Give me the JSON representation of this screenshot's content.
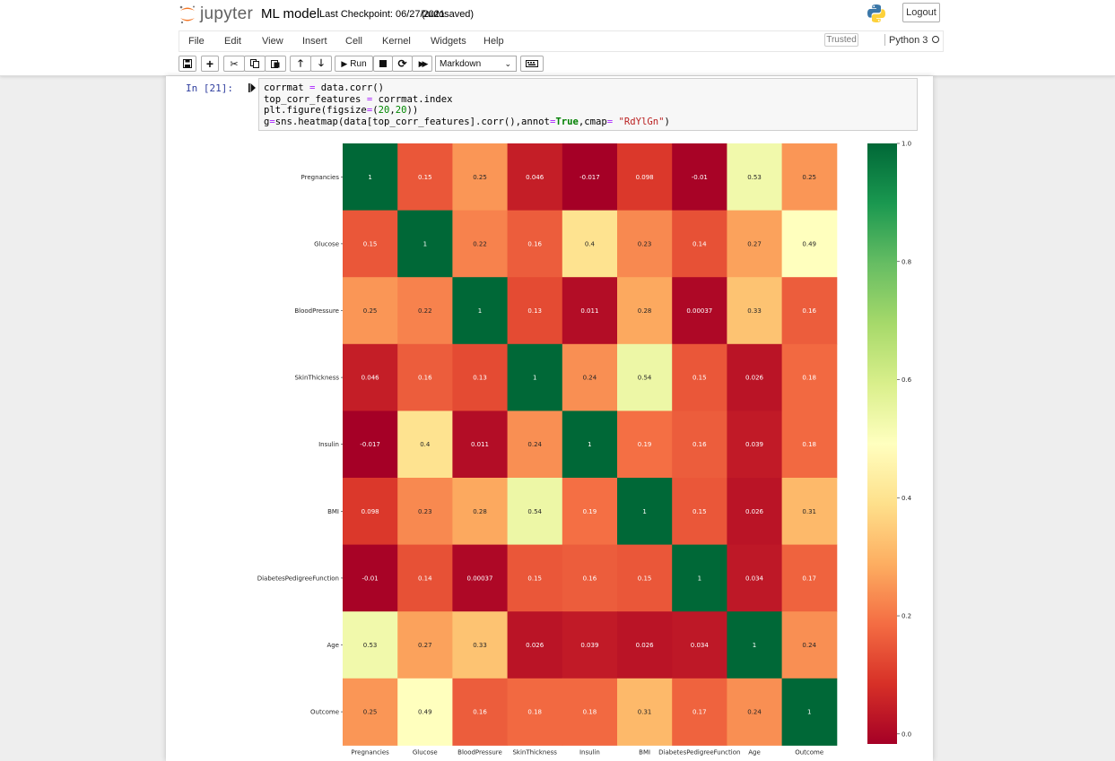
{
  "header": {
    "logo_text": "jupyter",
    "notebook_name": "ML model",
    "checkpoint": "Last Checkpoint: 06/27/2021",
    "autosave": "(autosaved)",
    "logout_label": "Logout",
    "trusted_label": "Trusted",
    "kernel_name": "Python 3"
  },
  "menu": {
    "items": [
      "File",
      "Edit",
      "View",
      "Insert",
      "Cell",
      "Kernel",
      "Widgets",
      "Help"
    ]
  },
  "toolbar": {
    "run_label": "Run",
    "cell_type": "Markdown",
    "icons": [
      "save-icon",
      "plus-icon",
      "cut-icon",
      "copy-icon",
      "paste-icon",
      "arrow-up-icon",
      "arrow-down-icon",
      "run-icon",
      "stop-icon",
      "restart-icon",
      "fast-forward-icon",
      "keyboard-icon"
    ]
  },
  "cell": {
    "prompt": "In [21]:",
    "code": [
      "corrmat = data.corr()",
      "top_corr_features = corrmat.index",
      "plt.figure(figsize=(20,20))",
      "g=sns.heatmap(data[top_corr_features].corr(),annot=True,cmap= \"RdYlGn\")"
    ]
  },
  "colors": {
    "prompt": "#303f9f",
    "colormap": [
      "#a50026",
      "#d73027",
      "#f46d43",
      "#fdae61",
      "#fee08b",
      "#ffffbf",
      "#d9ef8b",
      "#a6d96a",
      "#66bd63",
      "#1a9850",
      "#006837"
    ]
  },
  "chart_data": {
    "type": "heatmap",
    "colormap": "RdYlGn",
    "labels": [
      "Pregnancies",
      "Glucose",
      "BloodPressure",
      "SkinThickness",
      "Insulin",
      "BMI",
      "DiabetesPedigreeFunction",
      "Age",
      "Outcome"
    ],
    "values": [
      [
        1,
        0.15,
        0.25,
        0.046,
        -0.017,
        0.098,
        -0.01,
        0.53,
        0.25
      ],
      [
        0.15,
        1,
        0.22,
        0.16,
        0.4,
        0.23,
        0.14,
        0.27,
        0.49
      ],
      [
        0.25,
        0.22,
        1,
        0.13,
        0.011,
        0.28,
        0.00037,
        0.33,
        0.16
      ],
      [
        0.046,
        0.16,
        0.13,
        1,
        0.24,
        0.54,
        0.15,
        0.026,
        0.18
      ],
      [
        -0.017,
        0.4,
        0.011,
        0.24,
        1,
        0.19,
        0.16,
        0.039,
        0.18
      ],
      [
        0.098,
        0.23,
        0.28,
        0.54,
        0.19,
        1,
        0.15,
        0.026,
        0.31
      ],
      [
        -0.01,
        0.14,
        0.00037,
        0.15,
        0.16,
        0.15,
        1,
        0.034,
        0.17
      ],
      [
        0.53,
        0.27,
        0.33,
        0.026,
        0.039,
        0.026,
        0.034,
        1,
        0.24
      ],
      [
        0.25,
        0.49,
        0.16,
        0.18,
        0.18,
        0.31,
        0.17,
        0.24,
        1
      ]
    ],
    "annotations": [
      [
        "1",
        "0.15",
        "0.25",
        "0.046",
        "-0.017",
        "0.098",
        "-0.01",
        "0.53",
        "0.25"
      ],
      [
        "0.15",
        "1",
        "0.22",
        "0.16",
        "0.4",
        "0.23",
        "0.14",
        "0.27",
        "0.49"
      ],
      [
        "0.25",
        "0.22",
        "1",
        "0.13",
        "0.011",
        "0.28",
        "0.00037",
        "0.33",
        "0.16"
      ],
      [
        "0.046",
        "0.16",
        "0.13",
        "1",
        "0.24",
        "0.54",
        "0.15",
        "0.026",
        "0.18"
      ],
      [
        "-0.017",
        "0.4",
        "0.011",
        "0.24",
        "1",
        "0.19",
        "0.16",
        "0.039",
        "0.18"
      ],
      [
        "0.098",
        "0.23",
        "0.28",
        "0.54",
        "0.19",
        "1",
        "0.15",
        "0.026",
        "0.31"
      ],
      [
        "-0.01",
        "0.14",
        "0.00037",
        "0.15",
        "0.16",
        "0.15",
        "1",
        "0.034",
        "0.17"
      ],
      [
        "0.53",
        "0.27",
        "0.33",
        "0.026",
        "0.039",
        "0.026",
        "0.034",
        "1",
        "0.24"
      ],
      [
        "0.25",
        "0.49",
        "0.16",
        "0.18",
        "0.18",
        "0.31",
        "0.17",
        "0.24",
        "1"
      ]
    ],
    "colorbar": {
      "range": [
        -0.017,
        1.0
      ],
      "ticks": [
        0.0,
        0.2,
        0.4,
        0.6,
        0.8,
        1.0
      ],
      "tick_labels": [
        "0.0",
        "0.2",
        "0.4",
        "0.6",
        "0.8",
        "1.0"
      ]
    },
    "title": "",
    "xlabel": "",
    "ylabel": ""
  }
}
